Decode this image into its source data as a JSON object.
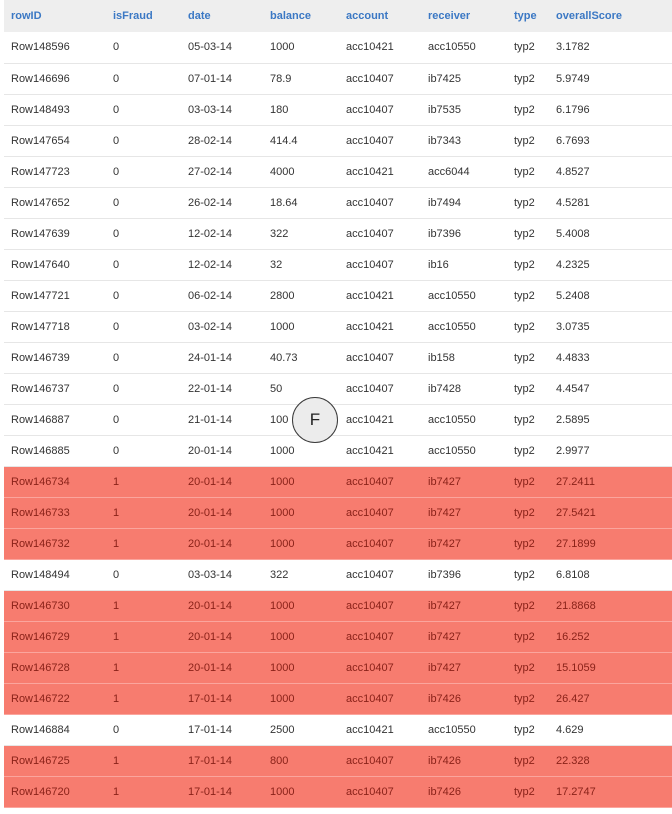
{
  "columns": [
    "rowID",
    "isFraud",
    "date",
    "balance",
    "account",
    "receiver",
    "type",
    "overallScore"
  ],
  "rows": [
    [
      "Row148596",
      "0",
      "05-03-14",
      "1000",
      "acc10421",
      "acc10550",
      "typ2",
      "3.1782"
    ],
    [
      "Row146696",
      "0",
      "07-01-14",
      "78.9",
      "acc10407",
      "ib7425",
      "typ2",
      "5.9749"
    ],
    [
      "Row148493",
      "0",
      "03-03-14",
      "180",
      "acc10407",
      "ib7535",
      "typ2",
      "6.1796"
    ],
    [
      "Row147654",
      "0",
      "28-02-14",
      "414.4",
      "acc10407",
      "ib7343",
      "typ2",
      "6.7693"
    ],
    [
      "Row147723",
      "0",
      "27-02-14",
      "4000",
      "acc10421",
      "acc6044",
      "typ2",
      "4.8527"
    ],
    [
      "Row147652",
      "0",
      "26-02-14",
      "18.64",
      "acc10407",
      "ib7494",
      "typ2",
      "4.5281"
    ],
    [
      "Row147639",
      "0",
      "12-02-14",
      "322",
      "acc10407",
      "ib7396",
      "typ2",
      "5.4008"
    ],
    [
      "Row147640",
      "0",
      "12-02-14",
      "32",
      "acc10407",
      "ib16",
      "typ2",
      "4.2325"
    ],
    [
      "Row147721",
      "0",
      "06-02-14",
      "2800",
      "acc10421",
      "acc10550",
      "typ2",
      "5.2408"
    ],
    [
      "Row147718",
      "0",
      "03-02-14",
      "1000",
      "acc10421",
      "acc10550",
      "typ2",
      "3.0735"
    ],
    [
      "Row146739",
      "0",
      "24-01-14",
      "40.73",
      "acc10407",
      "ib158",
      "typ2",
      "4.4833"
    ],
    [
      "Row146737",
      "0",
      "22-01-14",
      "50",
      "acc10407",
      "ib7428",
      "typ2",
      "4.4547"
    ],
    [
      "Row146887",
      "0",
      "21-01-14",
      "100",
      "acc10421",
      "acc10550",
      "typ2",
      "2.5895"
    ],
    [
      "Row146885",
      "0",
      "20-01-14",
      "1000",
      "acc10421",
      "acc10550",
      "typ2",
      "2.9977"
    ],
    [
      "Row146734",
      "1",
      "20-01-14",
      "1000",
      "acc10407",
      "ib7427",
      "typ2",
      "27.2411"
    ],
    [
      "Row146733",
      "1",
      "20-01-14",
      "1000",
      "acc10407",
      "ib7427",
      "typ2",
      "27.5421"
    ],
    [
      "Row146732",
      "1",
      "20-01-14",
      "1000",
      "acc10407",
      "ib7427",
      "typ2",
      "27.1899"
    ],
    [
      "Row148494",
      "0",
      "03-03-14",
      "322",
      "acc10407",
      "ib7396",
      "typ2",
      "6.8108"
    ],
    [
      "Row146730",
      "1",
      "20-01-14",
      "1000",
      "acc10407",
      "ib7427",
      "typ2",
      "21.8868"
    ],
    [
      "Row146729",
      "1",
      "20-01-14",
      "1000",
      "acc10407",
      "ib7427",
      "typ2",
      "16.252"
    ],
    [
      "Row146728",
      "1",
      "20-01-14",
      "1000",
      "acc10407",
      "ib7427",
      "typ2",
      "15.1059"
    ],
    [
      "Row146722",
      "1",
      "17-01-14",
      "1000",
      "acc10407",
      "ib7426",
      "typ2",
      "26.427"
    ],
    [
      "Row146884",
      "0",
      "17-01-14",
      "2500",
      "acc10421",
      "acc10550",
      "typ2",
      "4.629"
    ],
    [
      "Row146725",
      "1",
      "17-01-14",
      "800",
      "acc10407",
      "ib7426",
      "typ2",
      "22.328"
    ],
    [
      "Row146720",
      "1",
      "17-01-14",
      "1000",
      "acc10407",
      "ib7426",
      "typ2",
      "17.2747"
    ]
  ],
  "badge": {
    "letter": "F"
  },
  "colors": {
    "header_text": "#3b78c4",
    "header_bg": "#eeeeee",
    "fraud_row_bg": "#f77c6f",
    "fraud_row_text": "#8a2219",
    "normal_text": "#333333"
  }
}
